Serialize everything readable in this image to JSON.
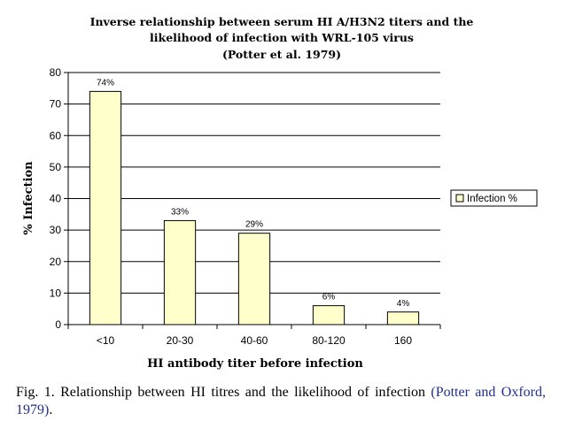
{
  "chart_data": {
    "type": "bar",
    "title_lines": [
      "Inverse relationship between serum HI A/H3N2 titers and the",
      "likelihood of infection with WRL-105 virus",
      "(Potter et al. 1979)"
    ],
    "categories": [
      "<10",
      "20-30",
      "40-60",
      "80-120",
      "160"
    ],
    "series": [
      {
        "name": "Infection %",
        "values": [
          74,
          33,
          29,
          6,
          4
        ]
      }
    ],
    "data_labels": [
      "74%",
      "33%",
      "29%",
      "6%",
      "4%"
    ],
    "xlabel": "HI antibody titer before infection",
    "ylabel": "% Infection",
    "ylim": [
      0,
      80
    ],
    "yticks": [
      0,
      10,
      20,
      30,
      40,
      50,
      60,
      70,
      80
    ],
    "grid": true,
    "legend_position": "right",
    "colors": {
      "bar_fill": "#ffffcc",
      "bar_stroke": "#000000",
      "grid": "#000000"
    }
  },
  "caption": {
    "text": "Fig. 1. Relationship between HI titres and the likelihood of infection",
    "reference": "(Potter and Oxford, 1979)",
    "suffix": "."
  }
}
